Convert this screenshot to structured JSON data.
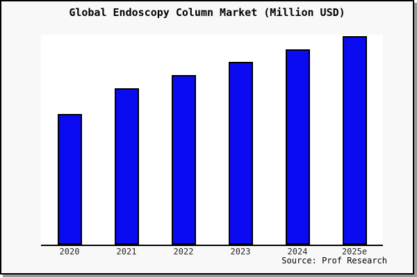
{
  "figure": {
    "title": "Global Endoscopy Column Market (Million USD)",
    "source_credit": "Source: Prof Research"
  },
  "chart_data": {
    "type": "bar",
    "title": "Global Endoscopy Column Market (Million USD)",
    "categories": [
      "2020",
      "2021",
      "2022",
      "2023",
      "2024",
      "2025e"
    ],
    "values": [
      100,
      120,
      130,
      140,
      150,
      160
    ],
    "xlabel": "",
    "ylabel": "",
    "ylim": [
      0,
      161
    ],
    "grid": false,
    "legend": false,
    "y_axis_labels_visible": false,
    "bar_color": "#0b0bf2",
    "bar_border_color": "#000000",
    "plot_background": "#ffffff",
    "figure_background": "#f8f8f8",
    "source": "Source: Prof Research"
  },
  "colors": {
    "accent_bar": "#0b0bf2",
    "axis_line": "#000000",
    "figure_border": "#000000",
    "figure_shadow": "#9a9a9a",
    "label_text": "#262626"
  }
}
